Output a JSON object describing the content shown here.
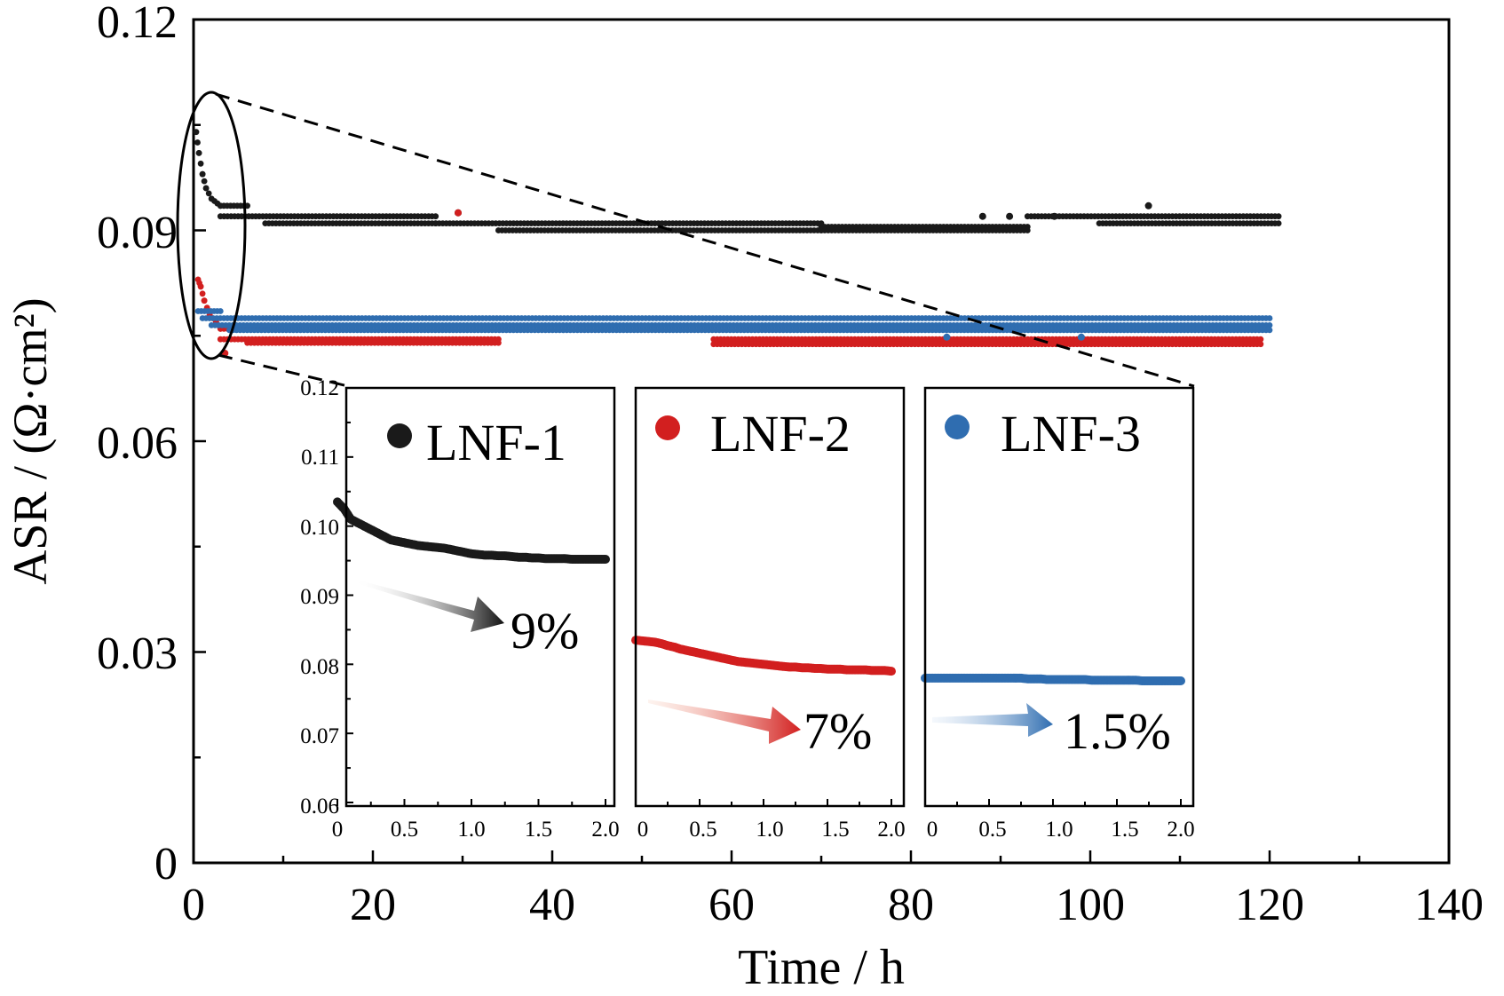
{
  "chart_data": [
    {
      "type": "scatter",
      "title": "",
      "xlabel": "Time / h",
      "ylabel": "ASR / (Ω·cm²)",
      "xlim": [
        0,
        140
      ],
      "ylim": [
        0,
        0.12
      ],
      "x_ticks": [
        "0",
        "20",
        "40",
        "60",
        "80",
        "100",
        "120",
        "140"
      ],
      "y_ticks": [
        "0",
        "0.03",
        "0.06",
        "0.09",
        "0.12"
      ],
      "grid": false,
      "series": [
        {
          "name": "LNF-1",
          "color": "#1a1a1a",
          "segments": [
            {
              "x": [
                0.3,
                0.6,
                1.0,
                1.4,
                2.0,
                3.0
              ],
              "y": [
                0.104,
                0.101,
                0.098,
                0.096,
                0.0945,
                0.0935
              ]
            },
            {
              "x": [
                3,
                6
              ],
              "y": [
                0.0935,
                0.0935
              ]
            },
            {
              "x": [
                3,
                27
              ],
              "y": [
                0.092,
                0.092
              ]
            },
            {
              "x": [
                8,
                27
              ],
              "y": [
                0.091,
                0.091
              ]
            },
            {
              "x": [
                27,
                70
              ],
              "y": [
                0.091,
                0.091
              ]
            },
            {
              "x": [
                34,
                70
              ],
              "y": [
                0.09,
                0.09
              ]
            },
            {
              "x": [
                70,
                93
              ],
              "y": [
                0.0905,
                0.0905
              ]
            },
            {
              "x": [
                70,
                93
              ],
              "y": [
                0.09,
                0.09
              ]
            },
            {
              "x": [
                93,
                121
              ],
              "y": [
                0.092,
                0.092
              ]
            },
            {
              "x": [
                101,
                121
              ],
              "y": [
                0.091,
                0.091
              ]
            }
          ],
          "outliers": {
            "x": [
              29.5,
              88,
              91,
              96,
              106.5
            ],
            "y": [
              0.0925,
              0.092,
              0.092,
              0.092,
              0.0935
            ]
          },
          "inset": {
            "label": "LNF-1",
            "change": "9%",
            "x": [
              0.0,
              0.05,
              0.1,
              0.15,
              0.2,
              0.25,
              0.3,
              0.35,
              0.4,
              0.45,
              0.5,
              0.55,
              0.6,
              0.65,
              0.7,
              0.75,
              0.8,
              0.85,
              0.9,
              0.95,
              1.0,
              1.05,
              1.1,
              1.15,
              1.2,
              1.25,
              1.3,
              1.35,
              1.4,
              1.45,
              1.5,
              1.55,
              1.6,
              1.65,
              1.7,
              1.75,
              1.8,
              1.85,
              1.9,
              1.95,
              2.0
            ],
            "y": [
              0.1035,
              0.1025,
              0.101,
              0.1005,
              0.1,
              0.0995,
              0.099,
              0.0985,
              0.098,
              0.0978,
              0.0976,
              0.0974,
              0.0972,
              0.0971,
              0.097,
              0.0969,
              0.0968,
              0.0966,
              0.0964,
              0.0962,
              0.096,
              0.0959,
              0.0958,
              0.0958,
              0.0957,
              0.0957,
              0.0956,
              0.0955,
              0.0955,
              0.0954,
              0.0954,
              0.0953,
              0.0953,
              0.0953,
              0.0953,
              0.0952,
              0.0952,
              0.0952,
              0.0952,
              0.0952,
              0.0952
            ]
          }
        },
        {
          "name": "LNF-2",
          "color": "#d21f1f",
          "segments": [
            {
              "x": [
                0.5,
                0.8,
                1.2,
                1.8,
                2.5,
                3.0
              ],
              "y": [
                0.083,
                0.082,
                0.08,
                0.078,
                0.077,
                0.076
              ]
            },
            {
              "x": [
                3,
                8
              ],
              "y": [
                0.076,
                0.076
              ]
            },
            {
              "x": [
                3,
                34
              ],
              "y": [
                0.0745,
                0.0745
              ]
            },
            {
              "x": [
                6,
                34
              ],
              "y": [
                0.074,
                0.074
              ]
            },
            {
              "x": [
                58,
                119
              ],
              "y": [
                0.0745,
                0.0745
              ]
            },
            {
              "x": [
                58,
                119
              ],
              "y": [
                0.0738,
                0.0738
              ]
            }
          ],
          "outliers": {
            "x": [
              3.5,
              29.5
            ],
            "y": [
              0.0725,
              0.0925
            ]
          },
          "inset": {
            "label": "LNF-2",
            "change": "7%",
            "x": [
              0.0,
              0.05,
              0.1,
              0.15,
              0.2,
              0.25,
              0.3,
              0.35,
              0.4,
              0.45,
              0.5,
              0.55,
              0.6,
              0.65,
              0.7,
              0.75,
              0.8,
              0.85,
              0.9,
              0.95,
              1.0,
              1.05,
              1.1,
              1.15,
              1.2,
              1.25,
              1.3,
              1.35,
              1.4,
              1.45,
              1.5,
              1.55,
              1.6,
              1.65,
              1.7,
              1.75,
              1.8,
              1.85,
              1.9,
              1.95,
              2.0
            ],
            "y": [
              0.0835,
              0.0834,
              0.0833,
              0.0832,
              0.083,
              0.0827,
              0.0825,
              0.0822,
              0.082,
              0.0818,
              0.0816,
              0.0814,
              0.0812,
              0.081,
              0.0808,
              0.0806,
              0.0804,
              0.0803,
              0.0802,
              0.0801,
              0.08,
              0.0799,
              0.0798,
              0.0797,
              0.0796,
              0.0796,
              0.0795,
              0.0795,
              0.0794,
              0.0794,
              0.0793,
              0.0793,
              0.0793,
              0.0792,
              0.0792,
              0.0792,
              0.0792,
              0.0791,
              0.0791,
              0.0791,
              0.079
            ]
          }
        },
        {
          "name": "LNF-3",
          "color": "#2f6db0",
          "segments": [
            {
              "x": [
                0.5,
                3
              ],
              "y": [
                0.0785,
                0.0785
              ]
            },
            {
              "x": [
                1,
                120
              ],
              "y": [
                0.0775,
                0.0775
              ]
            },
            {
              "x": [
                2,
                120
              ],
              "y": [
                0.0765,
                0.0765
              ]
            },
            {
              "x": [
                4,
                120
              ],
              "y": [
                0.0758,
                0.0758
              ]
            }
          ],
          "outliers": {
            "x": [
              84,
              99
            ],
            "y": [
              0.0748,
              0.0748
            ]
          },
          "inset": {
            "label": "LNF-3",
            "change": "1.5%",
            "x": [
              0.0,
              0.05,
              0.1,
              0.15,
              0.2,
              0.25,
              0.3,
              0.35,
              0.4,
              0.45,
              0.5,
              0.55,
              0.6,
              0.65,
              0.7,
              0.75,
              0.8,
              0.85,
              0.9,
              0.95,
              1.0,
              1.05,
              1.1,
              1.15,
              1.2,
              1.25,
              1.3,
              1.35,
              1.4,
              1.45,
              1.5,
              1.55,
              1.6,
              1.65,
              1.7,
              1.75,
              1.8,
              1.85,
              1.9,
              1.95,
              2.0
            ],
            "y": [
              0.078,
              0.078,
              0.078,
              0.078,
              0.078,
              0.078,
              0.078,
              0.078,
              0.078,
              0.078,
              0.078,
              0.078,
              0.078,
              0.078,
              0.078,
              0.078,
              0.0779,
              0.0779,
              0.0779,
              0.0778,
              0.0778,
              0.0778,
              0.0778,
              0.0778,
              0.0778,
              0.0778,
              0.0777,
              0.0777,
              0.0777,
              0.0777,
              0.0777,
              0.0777,
              0.0777,
              0.0777,
              0.0776,
              0.0776,
              0.0776,
              0.0776,
              0.0776,
              0.0776,
              0.0776
            ]
          }
        }
      ]
    },
    {
      "type": "scatter",
      "title": "",
      "xlabel": "",
      "ylabel": "",
      "xlim": [
        0,
        2.0
      ],
      "ylim": [
        0.06,
        0.12
      ],
      "x_ticks": [
        "0",
        "0.5",
        "1.0",
        "1.5",
        "2.0"
      ],
      "y_ticks": [
        "0.06",
        "0.07",
        "0.08",
        "0.09",
        "0.10",
        "0.11",
        "0.12"
      ],
      "panels": [
        "LNF-1",
        "LNF-2",
        "LNF-3"
      ]
    }
  ]
}
